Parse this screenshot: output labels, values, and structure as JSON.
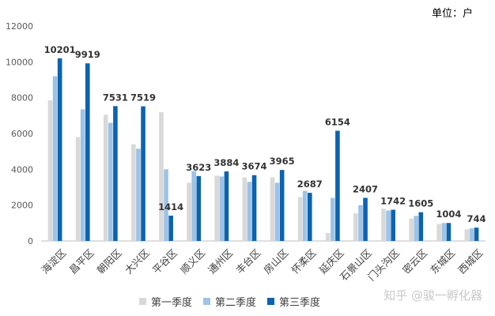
{
  "unit_label": "单位：户",
  "watermark": "知乎 @骏一孵化器",
  "chart_data": {
    "type": "bar",
    "categories": [
      "海淀区",
      "昌平区",
      "朝阳区",
      "大兴区",
      "平谷区",
      "顺义区",
      "通州区",
      "丰台区",
      "房山区",
      "怀柔区",
      "延庆区",
      "石景山区",
      "门头沟区",
      "密云区",
      "东城区",
      "西城区"
    ],
    "series": [
      {
        "name": "第一季度",
        "color": "#d9d9d9",
        "values": [
          7850,
          5800,
          7050,
          5400,
          7200,
          3250,
          3650,
          3550,
          3550,
          2450,
          450,
          1550,
          1800,
          1250,
          950,
          650
        ]
      },
      {
        "name": "第二季度",
        "color": "#9dc3e6",
        "values": [
          9200,
          7350,
          6600,
          5150,
          4000,
          3900,
          3600,
          3300,
          3250,
          2800,
          2400,
          2000,
          1700,
          1400,
          1000,
          700
        ]
      },
      {
        "name": "第三季度",
        "color": "#0c63b0",
        "values": [
          10201,
          9919,
          7531,
          7519,
          1414,
          3623,
          3884,
          3674,
          3965,
          2687,
          6154,
          2407,
          1742,
          1605,
          1004,
          744
        ]
      }
    ],
    "data_labels": [
      "10201",
      "9919",
      "7531",
      "7519",
      "1414",
      "3623",
      "3884",
      "3674",
      "3965",
      "2687",
      "6154",
      "2407",
      "1742",
      "1605",
      "1004",
      "744"
    ],
    "yticks": [
      "0",
      "2000",
      "4000",
      "6000",
      "8000",
      "10000",
      "12000"
    ],
    "ylim": [
      0,
      12000
    ],
    "xlabel": "",
    "ylabel": "",
    "grid": false,
    "legend_position": "bottom"
  }
}
